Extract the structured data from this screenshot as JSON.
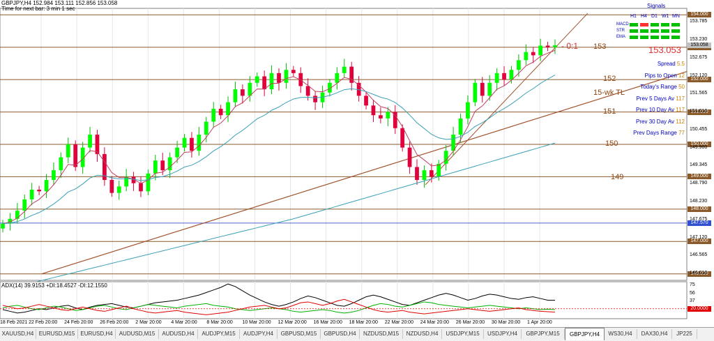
{
  "header": {
    "symbol_line": "GBPJPY,H4  152.984 153.111 152.856 153.058",
    "timer_line": "Time for next bar: 3 min 1 sec"
  },
  "signals": {
    "title": "Signals",
    "timeframes": [
      "H1",
      "H4",
      "D1",
      "W1",
      "MN"
    ],
    "rows": [
      {
        "label": "MACD",
        "colors": [
          "#00c000",
          "#ff3030",
          "#00c000",
          "#00c000",
          "#00c000"
        ]
      },
      {
        "label": "STR",
        "colors": [
          "#00c000",
          "#00c000",
          "#00c000",
          "#00c000",
          "#00c000"
        ]
      },
      {
        "label": "EMA",
        "colors": [
          "#00c000",
          "#00c000",
          "#00c000",
          "#00c000",
          "#00c000"
        ]
      }
    ]
  },
  "price_display": {
    "value": "153.053",
    "color": "#e03030"
  },
  "stats": [
    {
      "label": "Spread",
      "value": "5.5"
    },
    {
      "label": "Pips to Open",
      "value": "12"
    },
    {
      "label": "Today's Range",
      "value": "50"
    },
    {
      "label": "Prev 5 Days Av",
      "value": "117"
    },
    {
      "label": "Prev 10 Day Av",
      "value": "117"
    },
    {
      "label": "Prev 30 Day Av",
      "value": "112"
    },
    {
      "label": "Prev Days Range",
      "value": "77"
    }
  ],
  "colors": {
    "bull": "#00ff00",
    "bear": "#e0003c",
    "level_line": "#8b5a2b",
    "ema_fast": "#c04060",
    "ema_slow": "#3aa0b8",
    "adx": "#000000",
    "plus_di": "#00b000",
    "minus_di": "#e00000",
    "stat_label": "#0000c0",
    "stat_value": "#d08000",
    "annotation": "#8b4513"
  },
  "annotations": {
    "ratio": "- 0:1",
    "levels": [
      "153",
      "152",
      "151",
      "150",
      "149"
    ],
    "trendline": "15-wk TL"
  },
  "chart_data": [
    {
      "type": "candlestick",
      "title": "GBPJPY,H4",
      "x_ticks": [
        "18 Feb 2021",
        "22 Feb 20:00",
        "24 Feb 20:00",
        "26 Feb 20:00",
        "2 Mar 20:00",
        "4 Mar 20:00",
        "8 Mar 20:00",
        "10 Mar 20:00",
        "12 Mar 20:00",
        "16 Mar 20:00",
        "18 Mar 20:00",
        "22 Mar 20:00",
        "24 Mar 20:00",
        "26 Mar 20:00",
        "30 Mar 20:00",
        "1 Apr 20:00"
      ],
      "y_ticks": [
        "153.785",
        "153.230",
        "152.675",
        "152.120",
        "151.565",
        "151.010",
        "150.455",
        "149.900",
        "149.345",
        "148.790",
        "148.230",
        "147.675",
        "147.120",
        "146.565",
        "146.010"
      ],
      "ylim": [
        145.8,
        154.2
      ],
      "horizontal_levels": [
        "154.000",
        "153.000",
        "152.000",
        "151.000",
        "150.000",
        "149.000",
        "148.000",
        "147.570",
        "147.000",
        "146.000"
      ],
      "current_price": "153.058",
      "closes": [
        147.55,
        147.7,
        147.95,
        148.3,
        148.6,
        148.55,
        148.9,
        149.2,
        149.6,
        150.0,
        149.3,
        149.9,
        150.3,
        149.7,
        148.9,
        148.5,
        148.7,
        149.0,
        148.8,
        148.55,
        149.1,
        149.5,
        149.2,
        149.6,
        149.9,
        150.2,
        149.8,
        150.3,
        150.7,
        151.1,
        150.9,
        151.3,
        151.7,
        151.5,
        151.9,
        152.1,
        151.7,
        152.2,
        151.9,
        152.3,
        152.2,
        151.8,
        151.5,
        151.3,
        151.6,
        151.9,
        152.2,
        152.4,
        151.9,
        151.5,
        151.2,
        150.9,
        150.8,
        151.0,
        150.5,
        149.9,
        149.3,
        148.9,
        149.2,
        149.0,
        149.4,
        149.8,
        150.3,
        150.8,
        151.3,
        151.9,
        151.5,
        151.9,
        152.2,
        152.0,
        152.3,
        152.6,
        152.85,
        152.75,
        153.05,
        153.0,
        153.06
      ],
      "series": [
        {
          "name": "EMA fast"
        },
        {
          "name": "EMA slow"
        },
        {
          "name": "EMA long"
        }
      ]
    },
    {
      "type": "line",
      "title": "ADX(14) 39.9153 +DI:18.4527 -DI:12.1550",
      "y_ticks": [
        "75",
        "56",
        "37",
        "20.0000"
      ],
      "ylim": [
        0,
        80
      ],
      "series": [
        {
          "name": "ADX",
          "values": [
            18,
            14,
            10,
            12,
            16,
            20,
            18,
            22,
            26,
            28,
            22,
            18,
            24,
            28,
            30,
            32,
            28,
            24,
            22,
            26,
            30,
            34,
            36,
            38,
            40,
            44,
            48,
            52,
            58,
            64,
            70,
            78,
            72,
            62,
            52,
            44,
            36,
            30,
            26,
            30,
            36,
            44,
            50,
            46,
            40,
            34,
            28,
            26,
            32,
            40,
            48,
            52,
            48,
            42,
            36,
            30,
            28,
            34,
            40,
            46,
            52,
            56,
            52,
            46,
            40,
            44,
            50,
            54,
            52,
            48,
            44,
            42,
            46,
            48,
            44,
            40,
            40
          ]
        },
        {
          "name": "+DI",
          "values": [
            22,
            26,
            28,
            24,
            20,
            18,
            22,
            26,
            24,
            20,
            16,
            18,
            22,
            26,
            28,
            24,
            20,
            18,
            22,
            26,
            30,
            28,
            26,
            24,
            22,
            26,
            28,
            30,
            32,
            28,
            26,
            24,
            20,
            18,
            16,
            18,
            20,
            22,
            20,
            18,
            14,
            12,
            14,
            16,
            18,
            16,
            12,
            10,
            12,
            16,
            22,
            28,
            32,
            30,
            26,
            24,
            28,
            32,
            36,
            34,
            30,
            28,
            26,
            24,
            22,
            24,
            26,
            28,
            26,
            24,
            22,
            20,
            22,
            20,
            18,
            19,
            18
          ]
        },
        {
          "name": "-DI",
          "values": [
            28,
            24,
            20,
            22,
            26,
            30,
            26,
            22,
            18,
            16,
            20,
            24,
            20,
            16,
            14,
            18,
            22,
            26,
            20,
            16,
            12,
            10,
            12,
            14,
            16,
            12,
            10,
            8,
            6,
            8,
            10,
            12,
            16,
            20,
            24,
            26,
            28,
            24,
            20,
            22,
            28,
            34,
            36,
            32,
            28,
            32,
            38,
            42,
            36,
            30,
            24,
            18,
            14,
            12,
            14,
            16,
            12,
            10,
            8,
            10,
            12,
            14,
            16,
            18,
            20,
            18,
            16,
            14,
            16,
            18,
            20,
            22,
            18,
            16,
            14,
            13,
            12
          ]
        }
      ]
    }
  ],
  "tabs": [
    {
      "label": "XAUUSD,H4",
      "active": false
    },
    {
      "label": "EURUSD,M15",
      "active": false
    },
    {
      "label": "EURUSD,H4",
      "active": false
    },
    {
      "label": "AUDUSD,M15",
      "active": false
    },
    {
      "label": "AUDUSD,H4",
      "active": false
    },
    {
      "label": "AUDJPY,M15",
      "active": false
    },
    {
      "label": "AUDJPY,H4",
      "active": false
    },
    {
      "label": "GBPUSD,M15",
      "active": false
    },
    {
      "label": "GBPUSD,H4",
      "active": false
    },
    {
      "label": "NZDUSD,M15",
      "active": false
    },
    {
      "label": "NZDUSD,H4",
      "active": false
    },
    {
      "label": "USDJPY,M15",
      "active": false
    },
    {
      "label": "USDJPY,H4",
      "active": false
    },
    {
      "label": "GBPJPY,M15",
      "active": false
    },
    {
      "label": "GBPJPY,H4",
      "active": true
    },
    {
      "label": "WS30,H4",
      "active": false
    },
    {
      "label": "DAX30,H4",
      "active": false
    },
    {
      "label": "JP225",
      "active": false
    }
  ]
}
